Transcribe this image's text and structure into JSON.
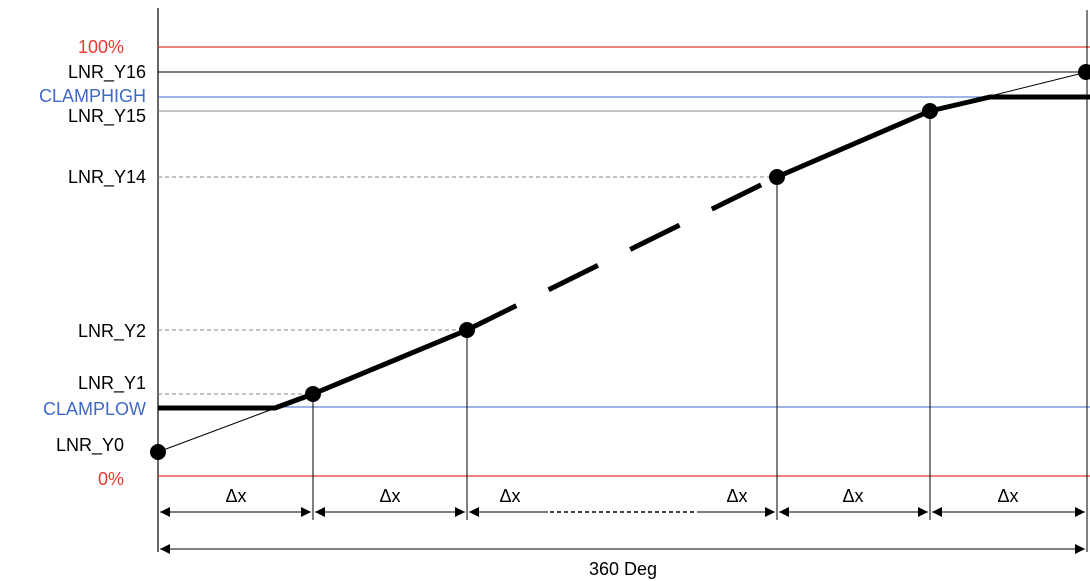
{
  "diagram": {
    "colors": {
      "percent_lines": "#e8392e",
      "clamp_lines": "#3f69c9",
      "curve": "#000000",
      "grid": "#000000",
      "dashed": "#888888"
    },
    "labels": {
      "y_100": "100%",
      "y_lnr16": "LNR_Y16",
      "y_clamphigh": "CLAMPHIGH",
      "y_lnr15": "LNR_Y15",
      "y_lnr14": "LNR_Y14",
      "y_lnr2": "LNR_Y2",
      "y_lnr1": "LNR_Y1",
      "y_clamplow": "CLAMPLOW",
      "y_lnr0": "LNR_Y0",
      "y_0": "0%"
    },
    "delta_label": "Δx",
    "total_label": "360 Deg"
  }
}
